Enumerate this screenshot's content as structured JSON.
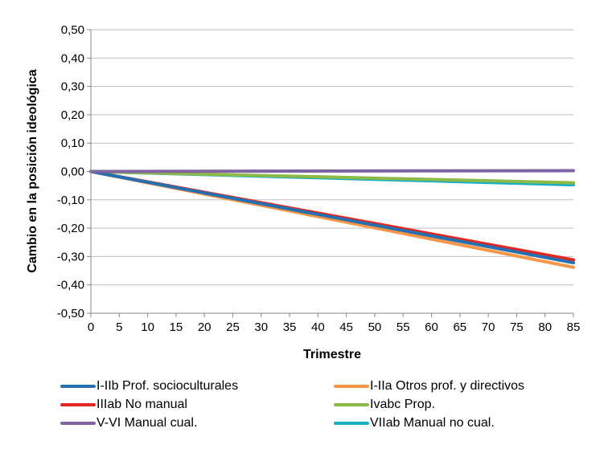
{
  "chart_data": {
    "type": "line",
    "title": "",
    "xlabel": "Trimestre",
    "ylabel": "Cambio en la posición ideológica",
    "xlim": [
      0,
      85
    ],
    "ylim": [
      -0.5,
      0.5
    ],
    "xticks": [
      "0",
      "5",
      "10",
      "15",
      "20",
      "25",
      "30",
      "35",
      "40",
      "45",
      "50",
      "55",
      "60",
      "65",
      "70",
      "75",
      "80",
      "85"
    ],
    "yticks": [
      "0,50",
      "0,40",
      "0,30",
      "0,20",
      "0,10",
      "0,00",
      "-0,10",
      "-0,20",
      "-0,30",
      "-0,40",
      "-0,50"
    ],
    "grid": "horizontal",
    "legend_position": "bottom",
    "x": [
      0,
      85
    ],
    "series": [
      {
        "name": "I-IIb Prof. socioculturales",
        "color": "#2371b3",
        "values": [
          0,
          -0.322
        ]
      },
      {
        "name": "I-IIa Otros prof. y directivos",
        "color": "#f79646",
        "values": [
          0,
          -0.338
        ]
      },
      {
        "name": "IIIab No manual",
        "color": "#e3261f",
        "values": [
          0,
          -0.312
        ]
      },
      {
        "name": "Ivabc Prop.",
        "color": "#8cba47",
        "values": [
          0,
          -0.04
        ]
      },
      {
        "name": "V-VI Manual cual.",
        "color": "#8064a2",
        "values": [
          0,
          0.003
        ]
      },
      {
        "name": "VIIab Manual no cual.",
        "color": "#17aec8",
        "values": [
          0,
          -0.047
        ]
      }
    ]
  }
}
